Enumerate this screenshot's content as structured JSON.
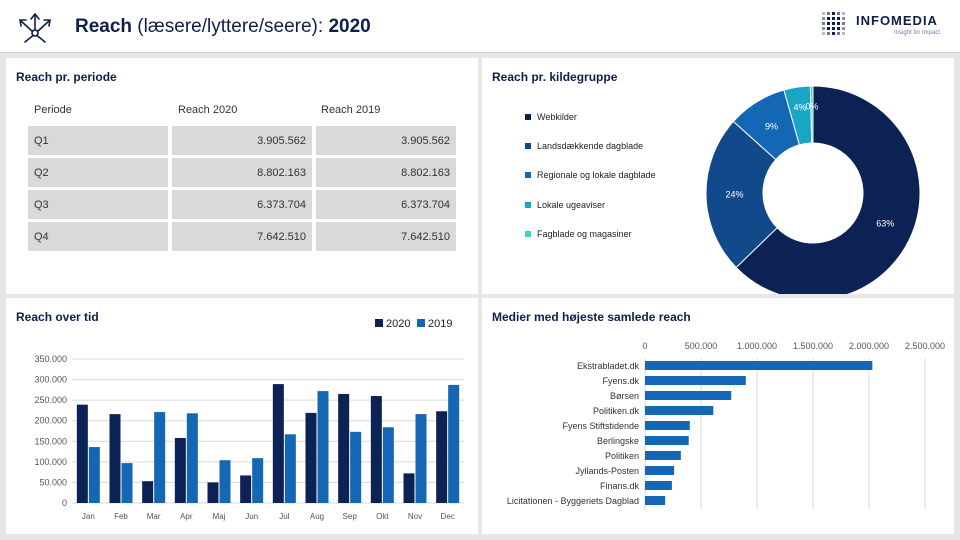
{
  "header": {
    "title_bold": "Reach",
    "title_rest": " (læsere/lyttere/seere):  ",
    "year": "2020",
    "logo_name": "INFOMEDIA",
    "logo_tagline": "Insight for Impact"
  },
  "period_panel": {
    "title": "Reach pr. periode",
    "columns": [
      "Periode",
      "Reach 2020",
      "Reach 2019"
    ],
    "rows": [
      {
        "periode": "Q1",
        "r2020": "3.905.562",
        "r2019": "3.905.562"
      },
      {
        "periode": "Q2",
        "r2020": "8.802.163",
        "r2019": "8.802.163"
      },
      {
        "periode": "Q3",
        "r2020": "6.373.704",
        "r2019": "6.373.704"
      },
      {
        "periode": "Q4",
        "r2020": "7.642.510",
        "r2019": "7.642.510"
      }
    ]
  },
  "colors": {
    "navy": "#0c2154",
    "mid_blue": "#11498a",
    "blue": "#1467b5",
    "bright_blue": "#1f8ad2",
    "teal": "#19a5c4",
    "turquoise": "#3fd3c9"
  },
  "chart_data": [
    {
      "type": "pie",
      "title": "Reach pr. kildegruppe",
      "legend_position": "left",
      "slices": [
        {
          "label": "Webkilder",
          "value": 63,
          "display": "63%",
          "color": "#0c2154"
        },
        {
          "label": "Landsdækkende dagblade",
          "value": 24,
          "display": "24%",
          "color": "#11498a"
        },
        {
          "label": "Regionale og lokale dagblade",
          "value": 9,
          "display": "9%",
          "color": "#1467b5"
        },
        {
          "label": "Lokale ugeaviser",
          "value": 4,
          "display": "4%",
          "color": "#19a5c4"
        },
        {
          "label": "Fagblade og magasiner",
          "value": 0.4,
          "display": "0%",
          "color": "#3fd3c9"
        }
      ]
    },
    {
      "type": "bar",
      "title": "Reach over tid",
      "categories": [
        "Jan",
        "Feb",
        "Mar",
        "Apr",
        "Maj",
        "Jun",
        "Jul",
        "Aug",
        "Sep",
        "Okt",
        "Nov",
        "Dec"
      ],
      "series": [
        {
          "name": "2020",
          "color": "#0c2154",
          "values": [
            239000,
            216000,
            53000,
            158000,
            50000,
            67000,
            289000,
            219000,
            265000,
            260000,
            72000,
            223000
          ]
        },
        {
          "name": "2019",
          "color": "#1467b5",
          "values": [
            136000,
            97000,
            221000,
            218000,
            104000,
            109000,
            167000,
            272000,
            173000,
            184000,
            216000,
            287000
          ]
        }
      ],
      "ylim": [
        0,
        350000
      ],
      "yticks": [
        "0",
        "50.000",
        "100.000",
        "150.000",
        "200.000",
        "250.000",
        "300.000",
        "350.000"
      ],
      "ytick_values": [
        0,
        50000,
        100000,
        150000,
        200000,
        250000,
        300000,
        350000
      ],
      "grid": true,
      "legend_position": "top-right"
    },
    {
      "type": "bar",
      "orientation": "horizontal",
      "title": "Medier med højeste samlede reach",
      "categories": [
        "Ekstrabladet.dk",
        "Fyens.dk",
        "Børsen",
        "Politiken.dk",
        "Fyens Stiftstidende",
        "Berlingske",
        "Politiken",
        "Jyllands-Posten",
        "Finans.dk",
        "Licitationen - Byggeriets Dagblad"
      ],
      "values": [
        2030000,
        900000,
        770000,
        610000,
        400000,
        390000,
        320000,
        260000,
        240000,
        180000
      ],
      "color": "#1467b5",
      "xlim": [
        0,
        2500000
      ],
      "xticks": [
        "0",
        "500.000",
        "1.000.000",
        "1.500.000",
        "2.000.000",
        "2.500.000"
      ],
      "xtick_values": [
        0,
        500000,
        1000000,
        1500000,
        2000000,
        2500000
      ],
      "grid": true
    }
  ]
}
